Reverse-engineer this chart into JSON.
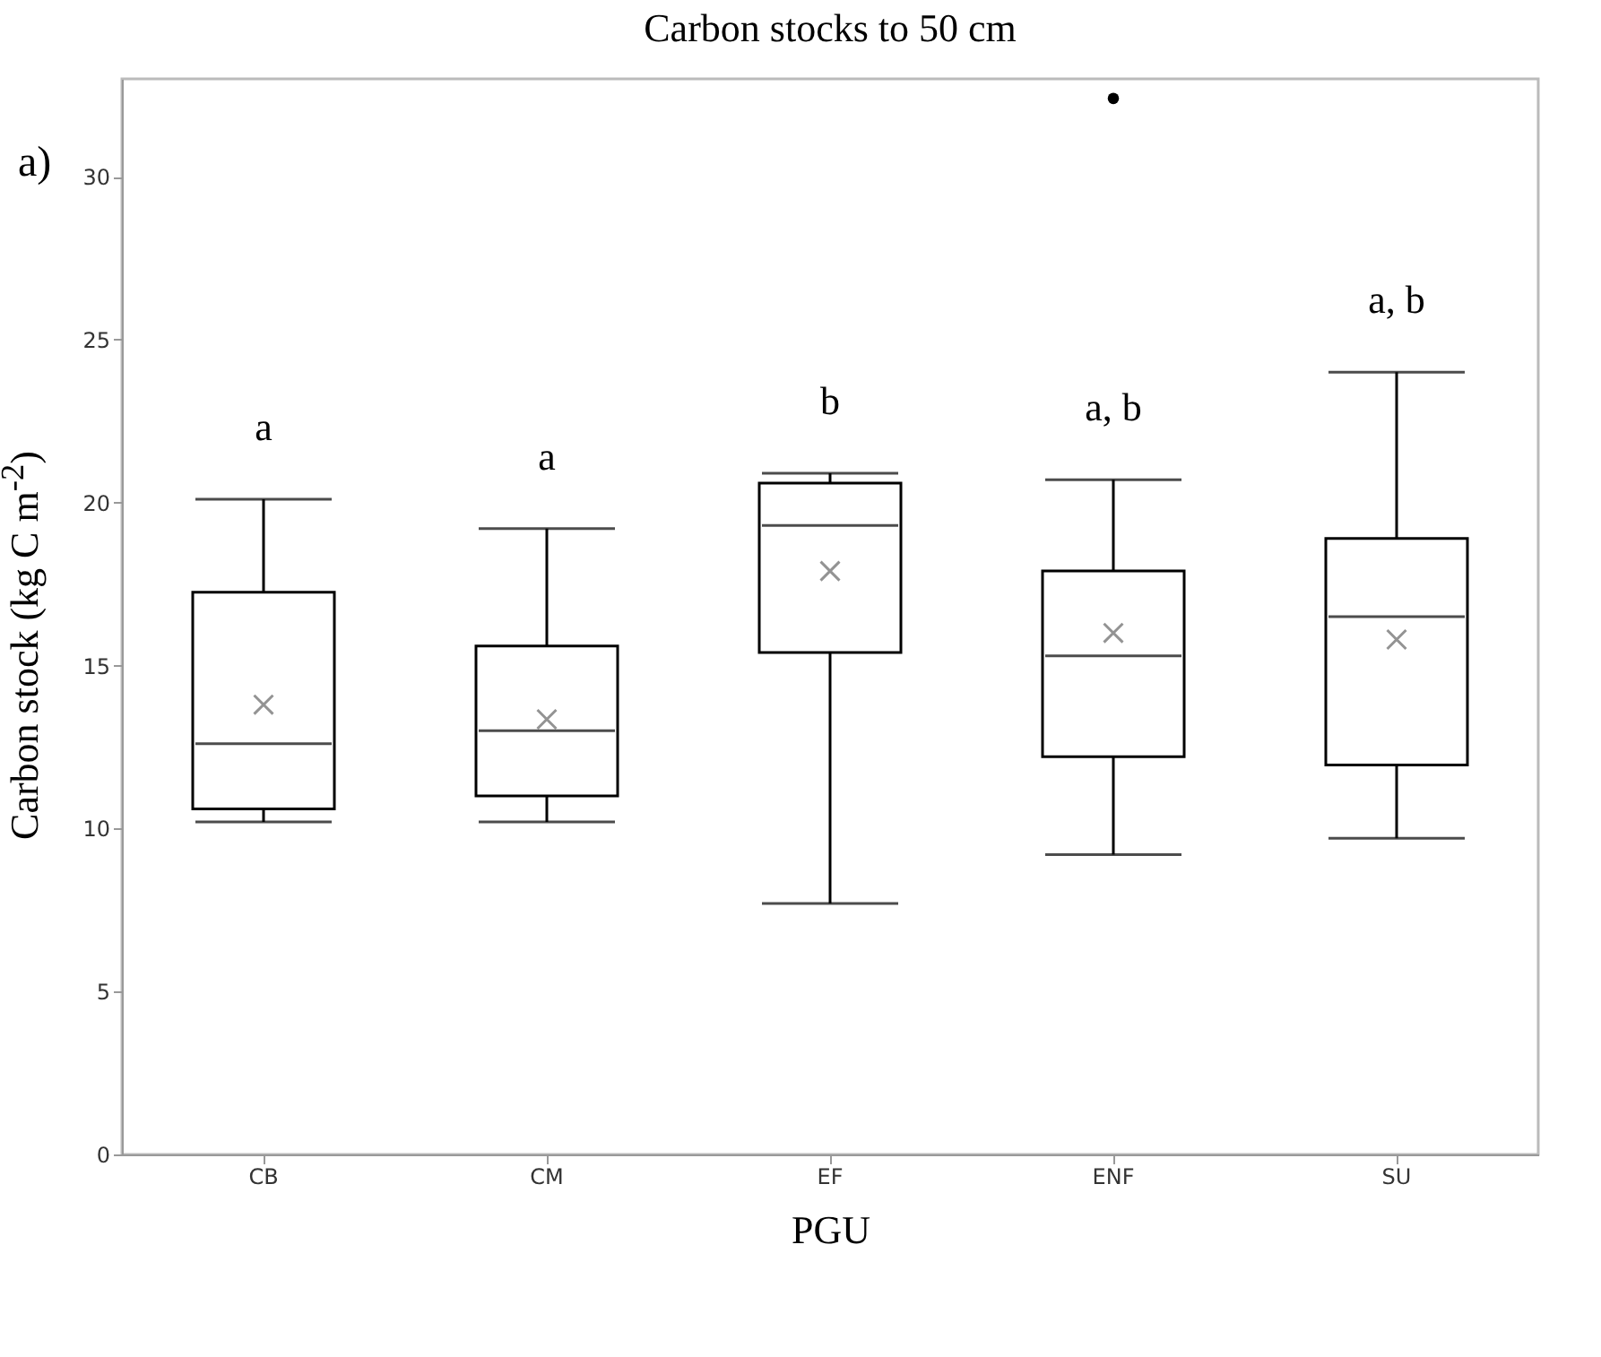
{
  "chart_data": {
    "type": "box",
    "title": "Carbon stocks to 50 cm",
    "xlabel": "PGU",
    "ylabel": "Carbon stock (kg C m$^{-2}$)",
    "categories": [
      "CB",
      "CM",
      "EF",
      "ENF",
      "SU"
    ],
    "boxes": [
      {
        "low": 10.2,
        "q1": 10.6,
        "median": 12.6,
        "q3": 17.25,
        "high": 20.1,
        "mean": 13.8
      },
      {
        "low": 10.2,
        "q1": 11.0,
        "median": 13.0,
        "q3": 15.6,
        "high": 19.2,
        "mean": 13.35
      },
      {
        "low": 7.7,
        "q1": 15.4,
        "median": 19.3,
        "q3": 20.6,
        "high": 20.9,
        "mean": 17.9
      },
      {
        "low": 9.2,
        "q1": 12.2,
        "median": 15.3,
        "q3": 17.9,
        "high": 20.7,
        "mean": 16.0,
        "outliers": [
          32.4
        ]
      },
      {
        "low": 9.7,
        "q1": 11.95,
        "median": 16.5,
        "q3": 18.9,
        "high": 24.0,
        "mean": 15.8
      }
    ],
    "ylim": [
      0,
      33
    ],
    "yticks": [
      0,
      5,
      10,
      15,
      20,
      25,
      30
    ],
    "grid": false,
    "annotations": [
      "a)",
      "a",
      "a",
      "b",
      "a, b",
      "a, b"
    ]
  }
}
